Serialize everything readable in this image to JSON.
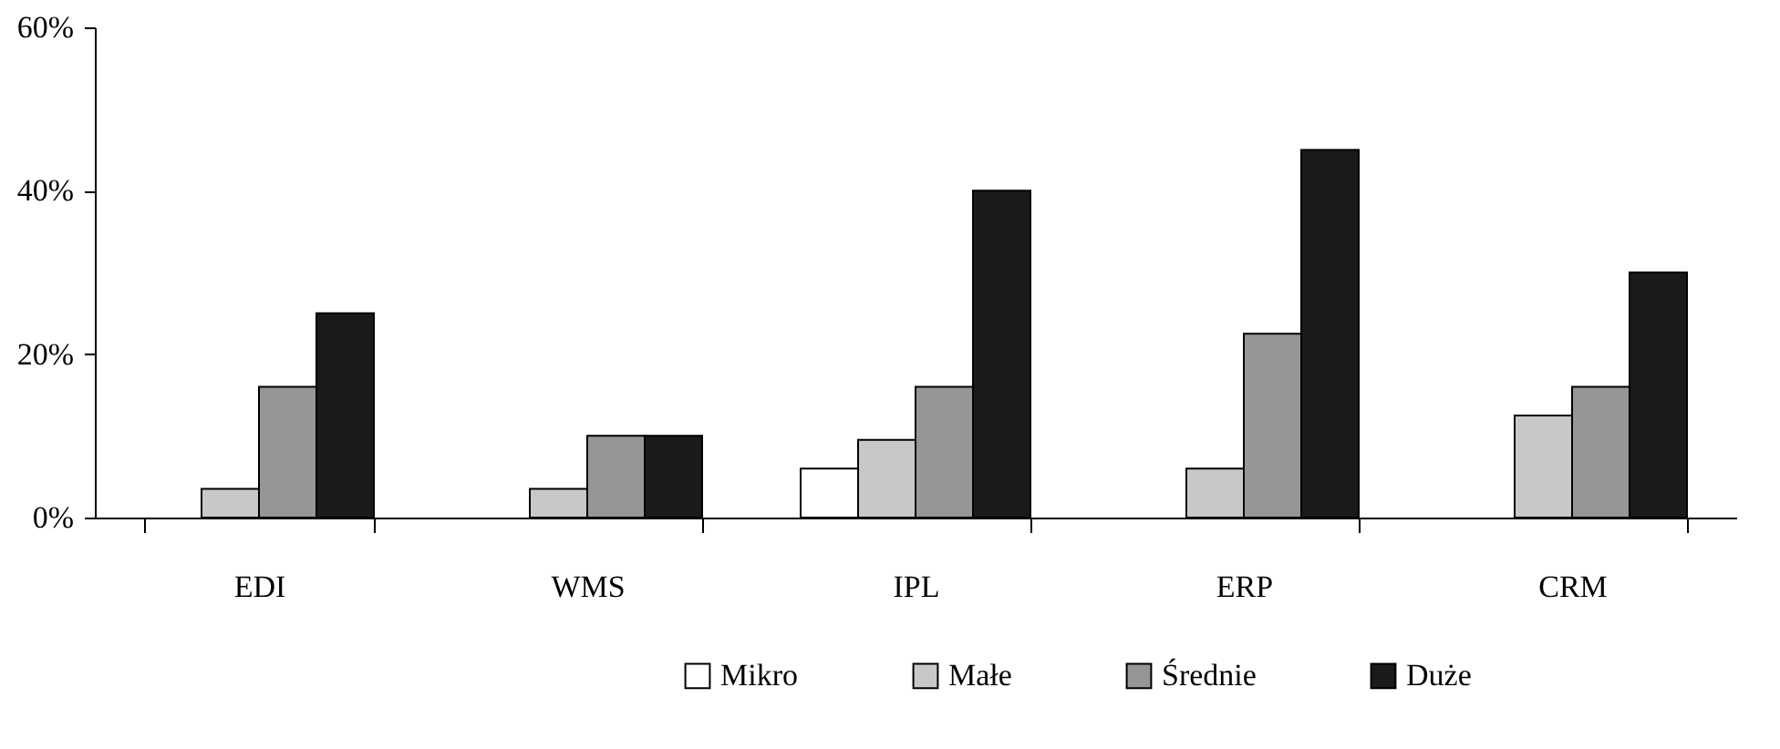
{
  "chart_data": {
    "type": "bar",
    "categories": [
      "EDI",
      "WMS",
      "IPL",
      "ERP",
      "CRM"
    ],
    "series": [
      {
        "name": "Mikro",
        "color": "#ffffff",
        "values": [
          null,
          null,
          6,
          null,
          null
        ]
      },
      {
        "name": "Małe",
        "color": "#c8c8c8",
        "values": [
          3.5,
          3.5,
          9.5,
          6,
          12.5
        ]
      },
      {
        "name": "Średnie",
        "color": "#969696",
        "values": [
          16,
          10,
          16,
          22.5,
          16
        ]
      },
      {
        "name": "Duże",
        "color": "#1a1a1a",
        "values": [
          25,
          10,
          40,
          45,
          30
        ]
      }
    ],
    "ylim": [
      0,
      60
    ],
    "yticks": [
      {
        "value": 0,
        "label": "0%"
      },
      {
        "value": 20,
        "label": "20%"
      },
      {
        "value": 40,
        "label": "40%"
      },
      {
        "value": 60,
        "label": "60%"
      }
    ],
    "grid": false,
    "legend": "bottom"
  }
}
